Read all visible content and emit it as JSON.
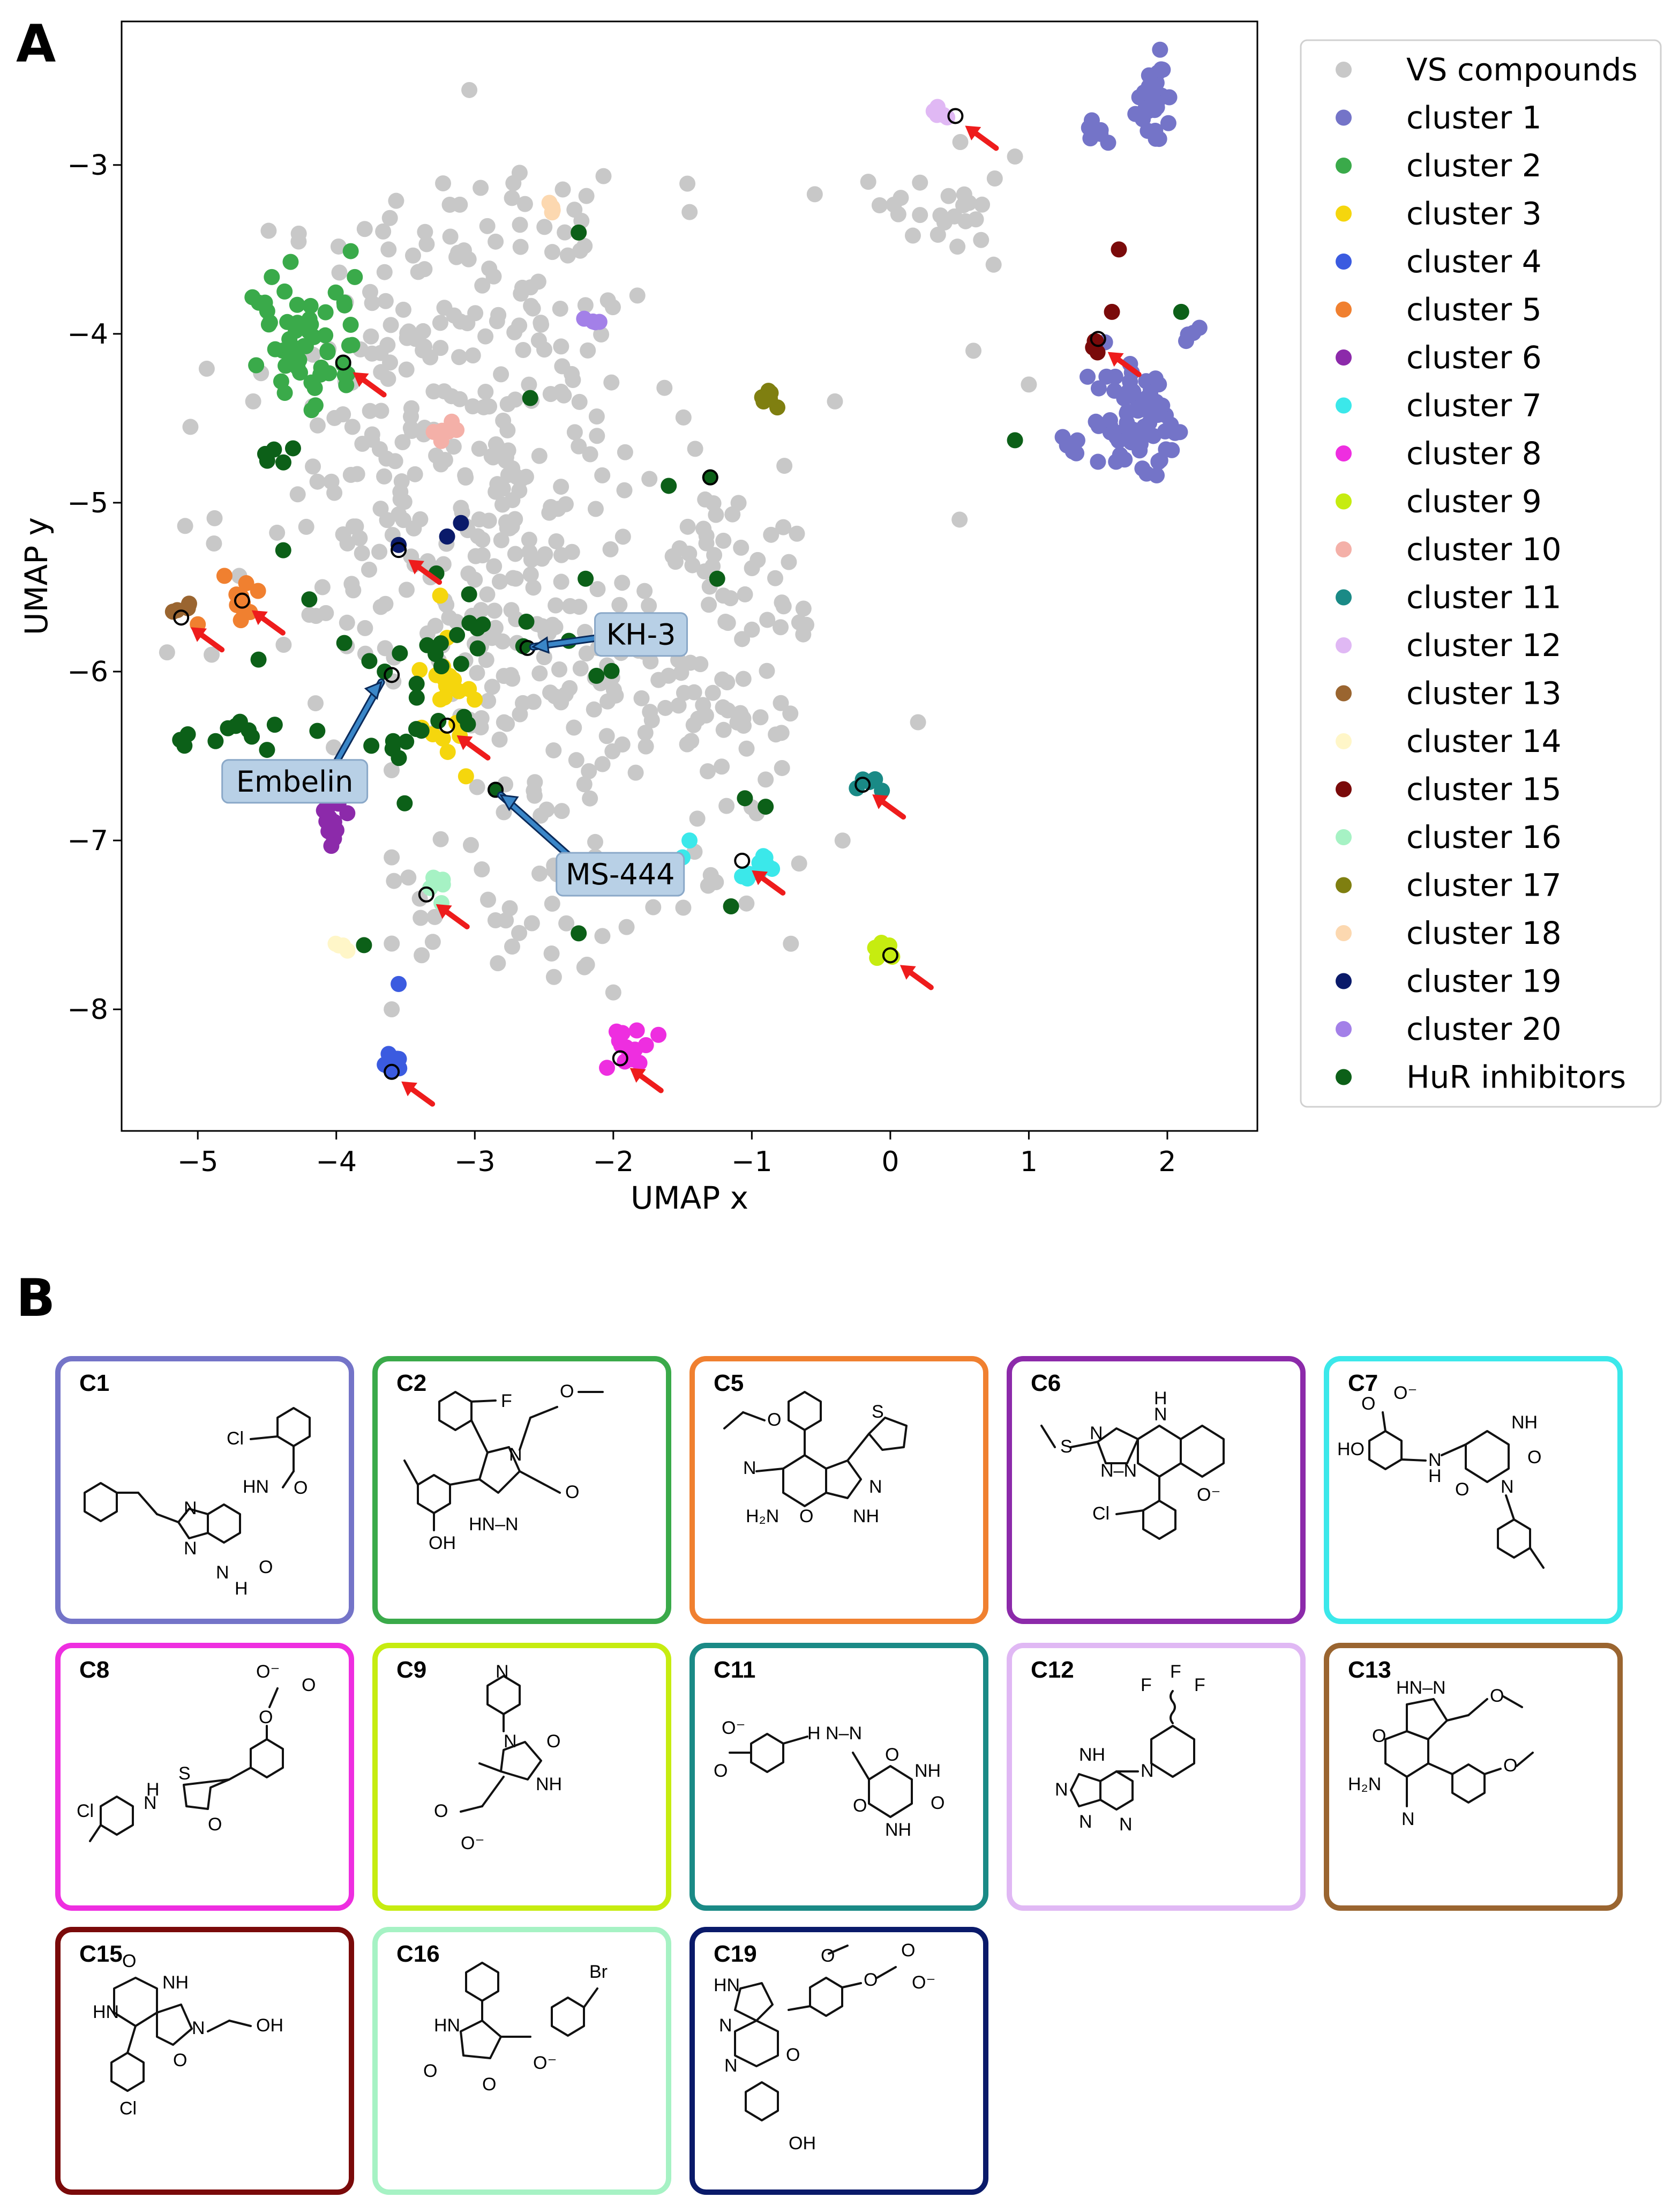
{
  "panel_a_label": "A",
  "panel_b_label": "B",
  "chart_data": {
    "type": "scatter",
    "xlabel": "UMAP x",
    "ylabel": "UMAP y",
    "xlim": [
      -5.55,
      2.65
    ],
    "ylim": [
      -8.72,
      -2.15
    ],
    "xticks": [
      -5,
      -4,
      -3,
      -2,
      -1,
      0,
      1,
      2
    ],
    "yticks": [
      -8,
      -7,
      -6,
      -5,
      -4,
      -3
    ],
    "grid": false,
    "legend_position": "outside-right",
    "series": [
      {
        "name": "VS compounds",
        "color": "#c8c8c8",
        "clusters": [
          {
            "c": [
              -3.2,
              -4.6
            ],
            "s": [
              0.75,
              0.75
            ],
            "n": 240,
            "seed": 11
          },
          {
            "c": [
              -2.6,
              -5.9
            ],
            "s": [
              0.6,
              0.6
            ],
            "n": 120,
            "seed": 12
          },
          {
            "c": [
              -1.4,
              -6.3
            ],
            "s": [
              0.45,
              0.55
            ],
            "n": 80,
            "seed": 13
          },
          {
            "c": [
              -0.9,
              -5.3
            ],
            "s": [
              0.35,
              0.3
            ],
            "n": 30,
            "seed": 14
          },
          {
            "c": [
              0.4,
              -3.25
            ],
            "s": [
              0.3,
              0.15
            ],
            "n": 25,
            "seed": 15
          },
          {
            "c": [
              -2.8,
              -3.6
            ],
            "s": [
              0.45,
              0.3
            ],
            "n": 40,
            "seed": 16
          },
          {
            "c": [
              -2.7,
              -7.4
            ],
            "s": [
              0.5,
              0.25
            ],
            "n": 35,
            "seed": 17
          }
        ],
        "points": [
          [
            -3.6,
            -8.0
          ],
          [
            -2.0,
            -7.9
          ],
          [
            1.0,
            -4.3
          ],
          [
            0.5,
            -5.1
          ],
          [
            -0.4,
            -4.4
          ],
          [
            0.2,
            -6.3
          ],
          [
            -4.1,
            -5.5
          ],
          [
            -4.6,
            -4.4
          ],
          [
            0.9,
            -2.95
          ],
          [
            0.6,
            -4.1
          ],
          [
            -4.9,
            -5.9
          ],
          [
            -3.6,
            -7.1
          ]
        ]
      },
      {
        "name": "cluster 1",
        "color": "#7474c8",
        "clusters": [
          {
            "c": [
              1.8,
              -4.55
            ],
            "s": [
              0.18,
              0.17
            ],
            "n": 75,
            "seed": 21
          },
          {
            "c": [
              1.88,
              -2.62
            ],
            "s": [
              0.06,
              0.12
            ],
            "n": 35,
            "seed": 22
          },
          {
            "c": [
              1.5,
              -2.8
            ],
            "s": [
              0.05,
              0.04
            ],
            "n": 6,
            "seed": 23
          },
          {
            "c": [
              2.2,
              -3.98
            ],
            "s": [
              0.04,
              0.04
            ],
            "n": 4,
            "seed": 24
          }
        ],
        "points": [
          [
            1.55,
            -4.05
          ]
        ]
      },
      {
        "name": "cluster 2",
        "color": "#3aaa4a",
        "clusters": [
          {
            "c": [
              -4.25,
              -4.05
            ],
            "s": [
              0.22,
              0.22
            ],
            "n": 55,
            "seed": 31
          }
        ],
        "points": [
          [
            -3.95,
            -4.18
          ]
        ]
      },
      {
        "name": "cluster 3",
        "color": "#f5d60d",
        "clusters": [
          {
            "c": [
              -3.2,
              -6.2
            ],
            "s": [
              0.12,
              0.18
            ],
            "n": 22,
            "seed": 41
          }
        ],
        "points": [
          [
            -3.25,
            -5.55
          ],
          [
            -3.2,
            -5.8
          ]
        ]
      },
      {
        "name": "cluster 4",
        "color": "#3b5be0",
        "clusters": [
          {
            "c": [
              -3.6,
              -8.32
            ],
            "s": [
              0.04,
              0.04
            ],
            "n": 10,
            "seed": 51
          }
        ],
        "points": [
          [
            -3.55,
            -7.85
          ]
        ]
      },
      {
        "name": "cluster 5",
        "color": "#f08030",
        "clusters": [
          {
            "c": [
              -4.7,
              -5.55
            ],
            "s": [
              0.08,
              0.08
            ],
            "n": 12,
            "seed": 61
          }
        ],
        "points": [
          [
            -5.0,
            -5.72
          ]
        ]
      },
      {
        "name": "cluster 6",
        "color": "#8c2aaa",
        "clusters": [
          {
            "c": [
              -4.0,
              -6.88
            ],
            "s": [
              0.07,
              0.08
            ],
            "n": 14,
            "seed": 71
          }
        ],
        "points": []
      },
      {
        "name": "cluster 7",
        "color": "#3be8ea",
        "clusters": [
          {
            "c": [
              -0.95,
              -7.15
            ],
            "s": [
              0.06,
              0.06
            ],
            "n": 10,
            "seed": 81
          }
        ],
        "points": [
          [
            -1.45,
            -7.0
          ],
          [
            -1.5,
            -7.1
          ]
        ]
      },
      {
        "name": "cluster 8",
        "color": "#ee2ee0",
        "clusters": [
          {
            "c": [
              -1.85,
              -8.25
            ],
            "s": [
              0.08,
              0.06
            ],
            "n": 14,
            "seed": 91
          }
        ],
        "points": []
      },
      {
        "name": "cluster 9",
        "color": "#c6ec10",
        "clusters": [
          {
            "c": [
              -0.05,
              -7.63
            ],
            "s": [
              0.04,
              0.03
            ],
            "n": 6,
            "seed": 101
          }
        ],
        "points": []
      },
      {
        "name": "cluster 10",
        "color": "#f4b0a8",
        "clusters": [
          {
            "c": [
              -3.2,
              -4.58
            ],
            "s": [
              0.04,
              0.06
            ],
            "n": 8,
            "seed": 111
          }
        ],
        "points": []
      },
      {
        "name": "cluster 11",
        "color": "#1a8a86",
        "clusters": [
          {
            "c": [
              -0.15,
              -6.67
            ],
            "s": [
              0.04,
              0.03
            ],
            "n": 6,
            "seed": 121
          }
        ],
        "points": []
      },
      {
        "name": "cluster 12",
        "color": "#e0b8f4",
        "clusters": [
          {
            "c": [
              0.35,
              -2.67
            ],
            "s": [
              0.04,
              0.03
            ],
            "n": 6,
            "seed": 131
          }
        ],
        "points": []
      },
      {
        "name": "cluster 13",
        "color": "#9a6530",
        "clusters": [
          {
            "c": [
              -5.12,
              -5.63
            ],
            "s": [
              0.04,
              0.03
            ],
            "n": 5,
            "seed": 141
          }
        ],
        "points": []
      },
      {
        "name": "cluster 14",
        "color": "#fff6c8",
        "clusters": [
          {
            "c": [
              -3.95,
              -7.65
            ],
            "s": [
              0.02,
              0.03
            ],
            "n": 4,
            "seed": 151
          }
        ],
        "points": []
      },
      {
        "name": "cluster 15",
        "color": "#7a0a0a",
        "clusters": [
          {
            "c": [
              1.45,
              -4.06
            ],
            "s": [
              0.04,
              0.03
            ],
            "n": 4,
            "seed": 161
          }
        ],
        "points": [
          [
            1.65,
            -3.5
          ],
          [
            1.6,
            -3.87
          ]
        ]
      },
      {
        "name": "cluster 16",
        "color": "#a6f2c4",
        "clusters": [
          {
            "c": [
              -3.25,
              -7.25
            ],
            "s": [
              0.05,
              0.04
            ],
            "n": 6,
            "seed": 171
          }
        ],
        "points": []
      },
      {
        "name": "cluster 17",
        "color": "#7f7f10",
        "clusters": [
          {
            "c": [
              -0.9,
              -4.38
            ],
            "s": [
              0.03,
              0.04
            ],
            "n": 6,
            "seed": 181
          }
        ],
        "points": []
      },
      {
        "name": "cluster 18",
        "color": "#fcd8b0",
        "clusters": [
          {
            "c": [
              -2.4,
              -3.22
            ],
            "s": [
              0.05,
              0.05
            ],
            "n": 4,
            "seed": 191
          }
        ],
        "points": [
          [
            -2.25,
            -3.4
          ]
        ]
      },
      {
        "name": "cluster 19",
        "color": "#0a1a6a",
        "clusters": [],
        "points": [
          [
            -3.55,
            -5.25
          ],
          [
            -3.1,
            -5.12
          ],
          [
            -3.2,
            -5.2
          ]
        ]
      },
      {
        "name": "cluster 20",
        "color": "#a380e8",
        "clusters": [
          {
            "c": [
              -2.15,
              -3.93
            ],
            "s": [
              0.04,
              0.02
            ],
            "n": 4,
            "seed": 201
          }
        ],
        "points": []
      },
      {
        "name": "HuR inhibitors",
        "color": "#0c6018",
        "clusters": [
          {
            "c": [
              -3.2,
              -5.95
            ],
            "s": [
              0.5,
              0.45
            ],
            "n": 35,
            "seed": 211
          },
          {
            "c": [
              -4.8,
              -6.35
            ],
            "s": [
              0.18,
              0.1
            ],
            "n": 10,
            "seed": 212
          },
          {
            "c": [
              -4.4,
              -4.7
            ],
            "s": [
              0.08,
              0.06
            ],
            "n": 5,
            "seed": 213
          },
          {
            "c": [
              -1.9,
              -5.75
            ],
            "s": [
              0.2,
              0.2
            ],
            "n": 7,
            "seed": 214
          }
        ],
        "points": [
          [
            -2.65,
            -5.85
          ],
          [
            -3.65,
            -6.0
          ],
          [
            -2.85,
            -6.7
          ],
          [
            -1.3,
            -4.85
          ],
          [
            -2.25,
            -3.4
          ],
          [
            -2.6,
            -4.38
          ],
          [
            0.9,
            -4.63
          ],
          [
            2.1,
            -3.87
          ],
          [
            -1.15,
            -7.39
          ],
          [
            -2.25,
            -7.55
          ],
          [
            -3.8,
            -7.62
          ],
          [
            -2.2,
            -5.45
          ],
          [
            -1.05,
            -6.75
          ],
          [
            -0.9,
            -6.8
          ],
          [
            -1.6,
            -4.9
          ],
          [
            -1.25,
            -5.45
          ]
        ]
      }
    ],
    "highlighted_points": [
      [
        1.5,
        -4.03
      ],
      [
        -3.95,
        -4.17
      ],
      [
        -3.2,
        -6.32
      ],
      [
        -3.6,
        -8.37
      ],
      [
        -4.68,
        -5.58
      ],
      [
        -5.12,
        -5.68
      ],
      [
        -1.07,
        -7.12
      ],
      [
        -1.95,
        -8.29
      ],
      [
        0.0,
        -7.68
      ],
      [
        -0.2,
        -6.67
      ],
      [
        0.47,
        -2.71
      ],
      [
        -3.35,
        -7.32
      ],
      [
        -1.3,
        -4.85
      ],
      [
        -3.6,
        -6.02
      ],
      [
        -2.62,
        -5.86
      ],
      [
        -2.85,
        -6.7
      ],
      [
        -3.55,
        -5.28
      ]
    ],
    "red_arrows_target": [
      [
        1.5,
        -4.05
      ],
      [
        -3.95,
        -4.17
      ],
      [
        -3.2,
        -6.32
      ],
      [
        -3.6,
        -8.37
      ],
      [
        -4.68,
        -5.58
      ],
      [
        -5.12,
        -5.68
      ],
      [
        -1.07,
        -7.12
      ],
      [
        -1.95,
        -8.29
      ],
      [
        0.0,
        -7.68
      ],
      [
        -0.2,
        -6.67
      ],
      [
        0.47,
        -2.71
      ],
      [
        -3.35,
        -7.32
      ],
      [
        -3.55,
        -5.28
      ]
    ],
    "annotations": [
      {
        "text": "KH-3",
        "target": [
          -2.65,
          -5.86
        ],
        "label_at": [
          -1.8,
          -5.78
        ]
      },
      {
        "text": "Embelin",
        "target": [
          -3.63,
          -6.02
        ],
        "label_at": [
          -4.3,
          -6.65
        ]
      },
      {
        "text": "MS-444",
        "target": [
          -2.87,
          -6.7
        ],
        "label_at": [
          -1.95,
          -7.2
        ]
      }
    ]
  },
  "structures": [
    {
      "id": "C1",
      "color": "#7474c8"
    },
    {
      "id": "C2",
      "color": "#3aaa4a"
    },
    {
      "id": "C5",
      "color": "#f08030"
    },
    {
      "id": "C6",
      "color": "#8c2aaa"
    },
    {
      "id": "C7",
      "color": "#3be8ea"
    },
    {
      "id": "C8",
      "color": "#ee2ee0"
    },
    {
      "id": "C9",
      "color": "#c6ec10"
    },
    {
      "id": "C11",
      "color": "#1a8a86"
    },
    {
      "id": "C12",
      "color": "#e0b8f4"
    },
    {
      "id": "C13",
      "color": "#9a6530"
    },
    {
      "id": "C15",
      "color": "#7a0a0a"
    },
    {
      "id": "C16",
      "color": "#a6f2c4"
    },
    {
      "id": "C19",
      "color": "#0a1a6a"
    }
  ]
}
